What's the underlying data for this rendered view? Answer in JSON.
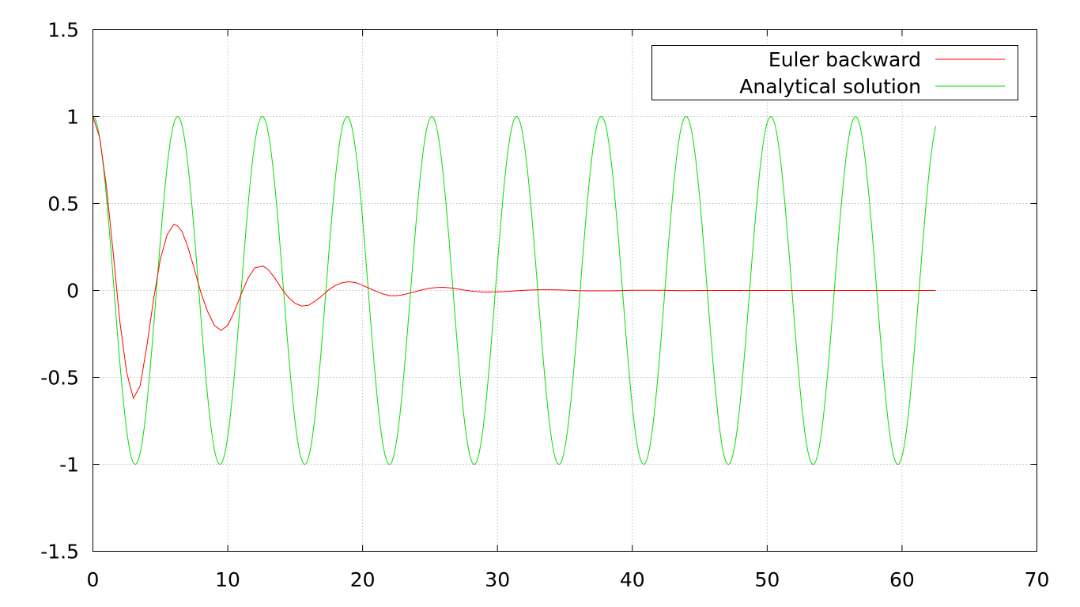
{
  "chart_data": {
    "type": "line",
    "title": "",
    "xlabel": "",
    "ylabel": "",
    "xlim": [
      0,
      70
    ],
    "ylim": [
      -1.5,
      1.5
    ],
    "x_ticks": [
      0,
      10,
      20,
      30,
      40,
      50,
      60,
      70
    ],
    "x_tick_labels": [
      "0",
      "10",
      "20",
      "30",
      "40",
      "50",
      "60",
      "70"
    ],
    "y_ticks": [
      -1.5,
      -1,
      -0.5,
      0,
      0.5,
      1,
      1.5
    ],
    "y_tick_labels": [
      "-1.5",
      "-1",
      "-0.5",
      "0",
      "0.5",
      "1",
      "1.5"
    ],
    "grid": true,
    "legend_position": "top-right",
    "series": [
      {
        "name": "Euler backward",
        "color": "#ff0000",
        "description_of_curve": "damped oscillation",
        "x": [
          0,
          0.5,
          1,
          1.5,
          2,
          2.5,
          3,
          3.5,
          4,
          4.5,
          5,
          5.5,
          6,
          6.3,
          6.6,
          7,
          7.5,
          8,
          8.5,
          9,
          9.5,
          10,
          10.5,
          11,
          11.5,
          12,
          12.6,
          13,
          13.5,
          14,
          14.5,
          15,
          15.5,
          16,
          16.5,
          17,
          17.5,
          18,
          18.5,
          19,
          19.5,
          20,
          20.5,
          21,
          21.5,
          22,
          22.5,
          23,
          23.5,
          24,
          24.5,
          25,
          25.5,
          26,
          26.5,
          27,
          27.5,
          28,
          28.5,
          29,
          30,
          31,
          32,
          33,
          34,
          35,
          36,
          37,
          38,
          39,
          40,
          41,
          42,
          43,
          44,
          45,
          46,
          47,
          48,
          50,
          52,
          54,
          56,
          58,
          60,
          62.5
        ],
        "y": [
          1,
          0.88,
          0.6,
          0.22,
          -0.18,
          -0.47,
          -0.62,
          -0.55,
          -0.32,
          -0.05,
          0.18,
          0.32,
          0.38,
          0.37,
          0.34,
          0.26,
          0.13,
          -0.01,
          -0.12,
          -0.2,
          -0.23,
          -0.2,
          -0.12,
          -0.02,
          0.07,
          0.13,
          0.14,
          0.12,
          0.07,
          0.01,
          -0.04,
          -0.075,
          -0.09,
          -0.085,
          -0.06,
          -0.03,
          0.005,
          0.03,
          0.045,
          0.05,
          0.045,
          0.03,
          0.012,
          -0.005,
          -0.02,
          -0.03,
          -0.03,
          -0.025,
          -0.015,
          -0.005,
          0.005,
          0.013,
          0.017,
          0.018,
          0.015,
          0.009,
          0.003,
          -0.003,
          -0.007,
          -0.009,
          -0.008,
          -0.004,
          0.001,
          0.004,
          0.004,
          0.002,
          -0.001,
          -0.002,
          -0.002,
          -0.001,
          0.001,
          0.001,
          0.001,
          0,
          -0.001,
          0,
          0,
          0,
          0,
          0,
          0,
          0,
          0,
          0,
          0,
          0
        ]
      },
      {
        "name": "Analytical solution",
        "color": "#00e000",
        "function": "cos(x)",
        "x_range": [
          0,
          62.5
        ]
      }
    ]
  }
}
